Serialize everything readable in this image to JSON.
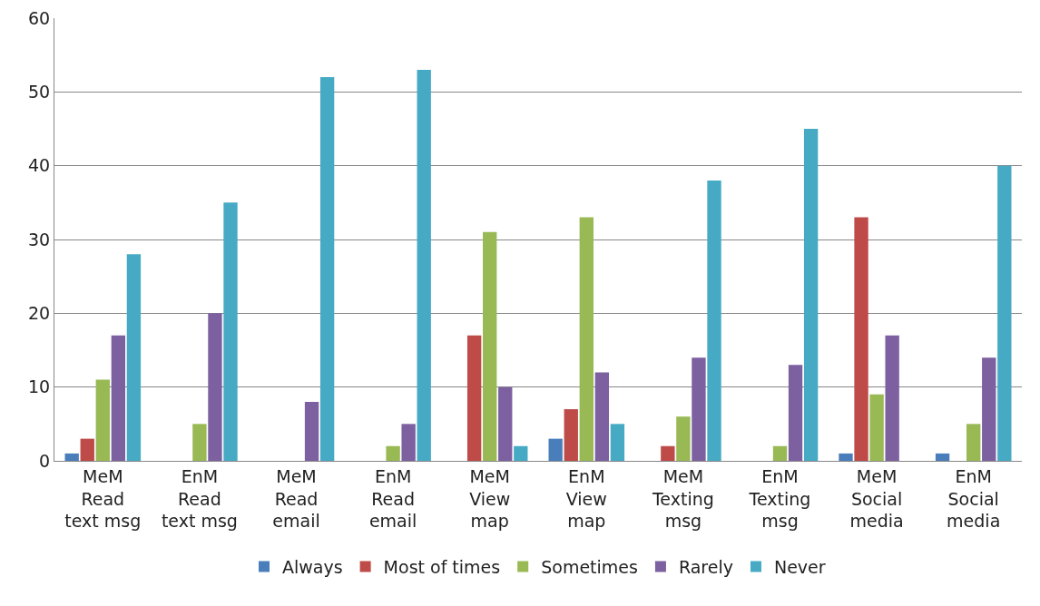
{
  "chart_data": {
    "type": "bar",
    "categories": [
      "MeM\nRead\ntext msg",
      "EnM\nRead\ntext msg",
      "MeM\nRead\nemail",
      "EnM\nRead\nemail",
      "MeM\nView\nmap",
      "EnM\nView\nmap",
      "MeM\nTexting\nmsg",
      "EnM\nTexting\nmsg",
      "MeM\nSocial\nmedia",
      "EnM\nSocial\nmedia"
    ],
    "series": [
      {
        "name": "Always",
        "color": "#4a7ebb",
        "values": [
          1,
          0,
          0,
          0,
          0,
          3,
          0,
          0,
          1,
          1
        ]
      },
      {
        "name": "Most of times",
        "color": "#be4b48",
        "values": [
          3,
          0,
          0,
          0,
          17,
          7,
          2,
          0,
          33,
          0
        ]
      },
      {
        "name": "Sometimes",
        "color": "#98b954",
        "values": [
          11,
          5,
          0,
          2,
          31,
          33,
          6,
          2,
          9,
          5
        ]
      },
      {
        "name": "Rarely",
        "color": "#7d60a0",
        "values": [
          17,
          20,
          8,
          5,
          10,
          12,
          14,
          13,
          17,
          14
        ]
      },
      {
        "name": "Never",
        "color": "#46aac5",
        "values": [
          28,
          35,
          52,
          53,
          2,
          5,
          38,
          45,
          0,
          40
        ]
      }
    ],
    "ylim": [
      0,
      60
    ],
    "yticks": [
      0,
      10,
      20,
      30,
      40,
      50,
      60
    ],
    "grid": "y",
    "legend": "bottom"
  }
}
